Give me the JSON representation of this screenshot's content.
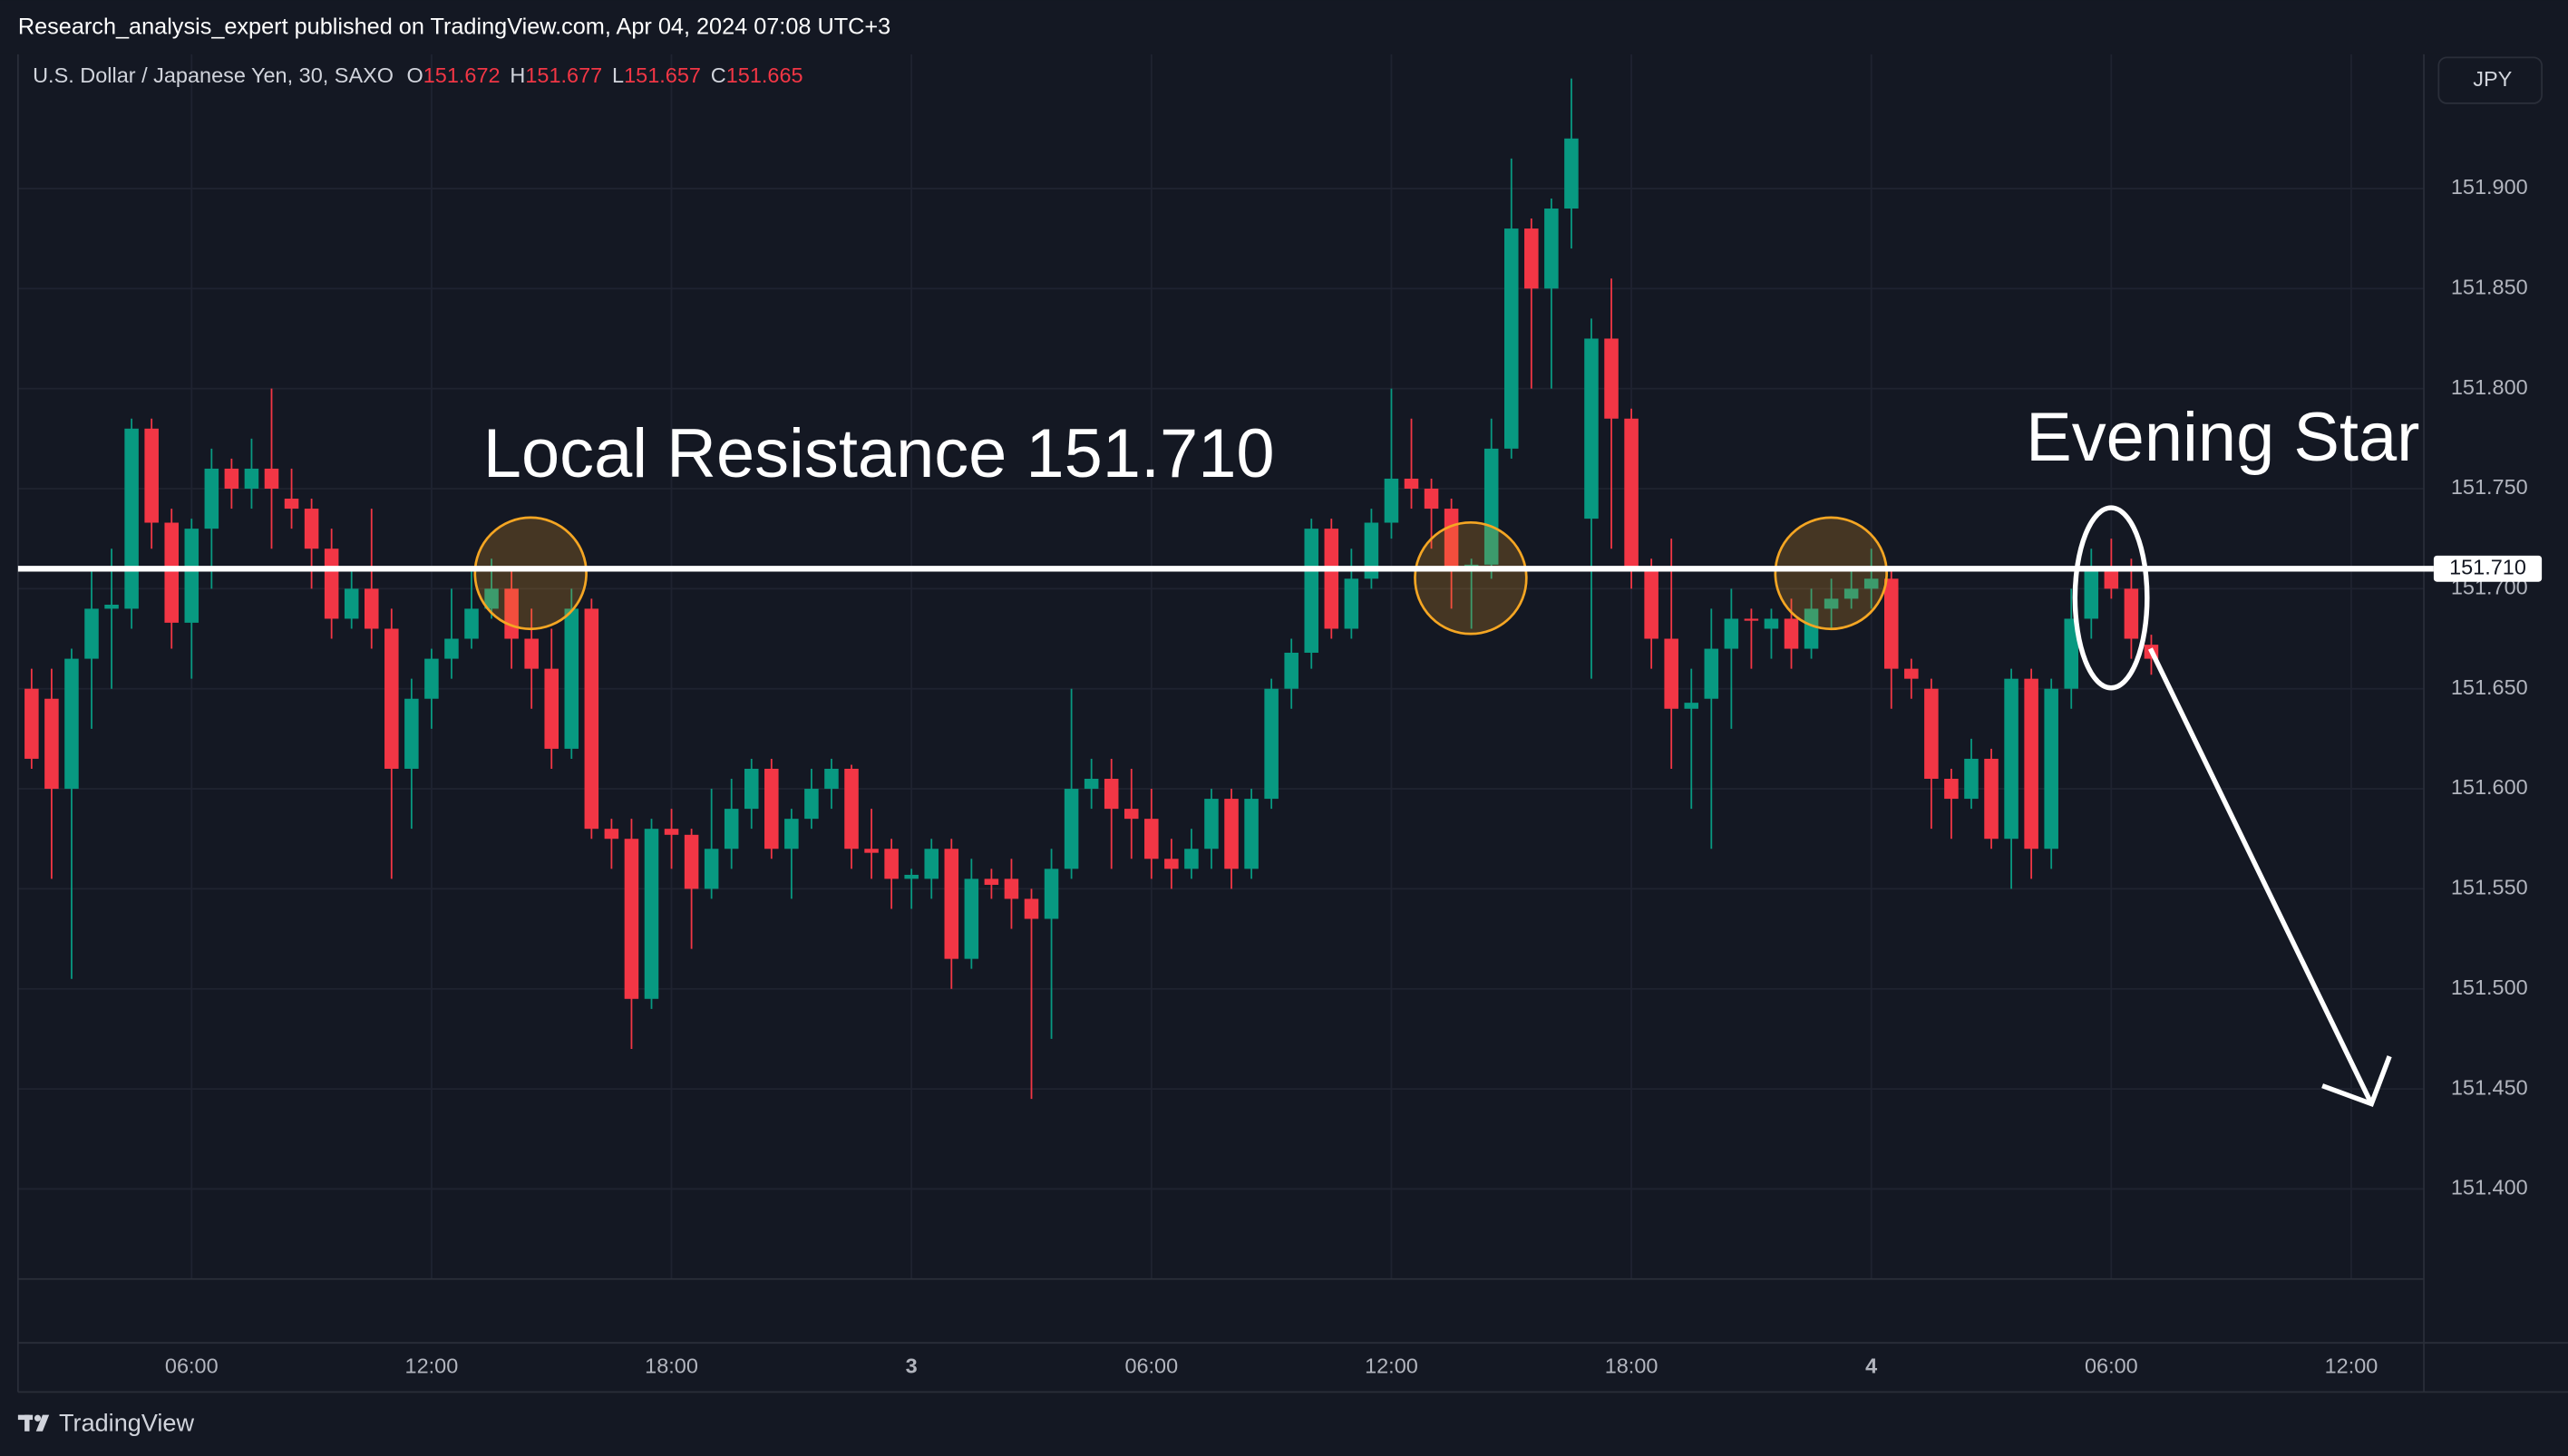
{
  "header": {
    "publisher": "Research_analysis_expert published on TradingView.com, Apr 04, 2024 07:08 UTC+3",
    "brand": "TradingView"
  },
  "chart_data": {
    "type": "candlestick",
    "symbol": "U.S. Dollar / Japanese Yen, 30, SAXO",
    "legend_labels": [
      "O",
      "H",
      "L",
      "C"
    ],
    "currency": "JPY",
    "annotations": [
      "Local Resistance 151.710",
      "Evening Star"
    ],
    "resistance": {
      "value": 151.71,
      "label": "151.710"
    },
    "up_color": "#089981",
    "down_color": "#f23645",
    "grid": true,
    "ylim": [
      151.355,
      151.97
    ],
    "yticks": [
      {
        "value": 151.4,
        "label": "151.400"
      },
      {
        "value": 151.45,
        "label": "151.450"
      },
      {
        "value": 151.5,
        "label": "151.500"
      },
      {
        "value": 151.55,
        "label": "151.550"
      },
      {
        "value": 151.6,
        "label": "151.600"
      },
      {
        "value": 151.65,
        "label": "151.650"
      },
      {
        "value": 151.7,
        "label": "151.700"
      },
      {
        "value": 151.75,
        "label": "151.750"
      },
      {
        "value": 151.8,
        "label": "151.800"
      },
      {
        "value": 151.85,
        "label": "151.850"
      },
      {
        "value": 151.9,
        "label": "151.900"
      }
    ],
    "categories": [
      null,
      null,
      null,
      null,
      null,
      null,
      null,
      null,
      "06:00",
      null,
      null,
      null,
      null,
      null,
      null,
      null,
      null,
      null,
      null,
      null,
      "12:00",
      null,
      null,
      null,
      null,
      null,
      null,
      null,
      null,
      null,
      null,
      null,
      "18:00",
      null,
      null,
      null,
      null,
      null,
      null,
      null,
      null,
      null,
      null,
      null,
      "3",
      null,
      null,
      null,
      null,
      null,
      null,
      null,
      null,
      null,
      null,
      null,
      "06:00",
      null,
      null,
      null,
      null,
      null,
      null,
      null,
      null,
      null,
      null,
      null,
      "12:00",
      null,
      null,
      null,
      null,
      null,
      null,
      null,
      null,
      null,
      null,
      null,
      "18:00",
      null,
      null,
      null,
      null,
      null,
      null,
      null,
      null,
      null,
      null,
      null,
      "4",
      null,
      null,
      null,
      null,
      null,
      null,
      null,
      null,
      null,
      null,
      null,
      "06:00",
      null,
      null,
      null,
      null,
      null,
      null,
      null,
      null,
      null,
      null,
      null,
      "12:00",
      null,
      null,
      null
    ],
    "open": [
      151.65,
      151.645,
      151.6,
      151.665,
      151.69,
      151.69,
      151.78,
      151.733,
      151.683,
      151.73,
      151.76,
      151.75,
      151.76,
      151.745,
      151.74,
      151.72,
      151.685,
      151.7,
      151.68,
      151.61,
      151.645,
      151.665,
      151.675,
      151.69,
      151.7,
      151.675,
      151.66,
      151.62,
      151.69,
      151.58,
      151.575,
      151.495,
      151.58,
      151.577,
      151.55,
      151.57,
      151.59,
      151.61,
      151.57,
      151.585,
      151.6,
      151.61,
      151.57,
      151.57,
      151.555,
      151.555,
      151.57,
      151.515,
      151.555,
      151.555,
      151.545,
      151.535,
      151.56,
      151.6,
      151.605,
      151.59,
      151.585,
      151.565,
      151.56,
      151.57,
      151.595,
      151.56,
      151.595,
      151.65,
      151.668,
      151.73,
      151.68,
      151.705,
      151.733,
      151.755,
      151.75,
      151.74,
      151.71,
      151.712,
      151.77,
      151.88,
      151.85,
      151.89,
      151.735,
      151.825,
      151.785,
      151.71,
      151.675,
      151.64,
      151.645,
      151.67,
      151.685,
      151.68,
      151.685,
      151.67,
      151.69,
      151.695,
      151.7,
      151.705,
      151.66,
      151.65,
      151.605,
      151.595,
      151.615,
      151.575,
      151.655,
      151.57,
      151.65,
      151.685,
      151.71,
      151.7,
      151.672,
      null,
      null,
      null,
      null,
      null,
      null,
      null,
      null,
      null,
      null,
      null,
      null,
      null
    ],
    "high": [
      151.66,
      151.66,
      151.67,
      151.71,
      151.72,
      151.785,
      151.785,
      151.74,
      151.735,
      151.77,
      151.765,
      151.775,
      151.8,
      151.76,
      151.745,
      151.73,
      151.71,
      151.74,
      151.69,
      151.655,
      151.67,
      151.7,
      151.71,
      151.715,
      151.71,
      151.69,
      151.68,
      151.7,
      151.695,
      151.585,
      151.585,
      151.585,
      151.59,
      151.58,
      151.6,
      151.605,
      151.615,
      151.615,
      151.59,
      151.61,
      151.615,
      151.612,
      151.59,
      151.575,
      151.56,
      151.575,
      151.575,
      151.565,
      151.56,
      151.565,
      151.55,
      151.57,
      151.65,
      151.615,
      151.615,
      151.61,
      151.6,
      151.575,
      151.58,
      151.6,
      151.6,
      151.6,
      151.655,
      151.675,
      151.735,
      151.735,
      151.72,
      151.74,
      151.8,
      151.785,
      151.755,
      151.745,
      151.715,
      151.785,
      151.915,
      151.885,
      151.895,
      151.955,
      151.835,
      151.855,
      151.79,
      151.715,
      151.725,
      151.66,
      151.69,
      151.7,
      151.69,
      151.69,
      151.695,
      151.7,
      151.705,
      151.71,
      151.72,
      151.71,
      151.665,
      151.655,
      151.61,
      151.625,
      151.62,
      151.66,
      151.66,
      151.655,
      151.7,
      151.72,
      151.725,
      151.715,
      151.677,
      null,
      null,
      null,
      null,
      null,
      null,
      null,
      null,
      null,
      null,
      null,
      null,
      null
    ],
    "low": [
      151.61,
      151.555,
      151.505,
      151.63,
      151.65,
      151.68,
      151.72,
      151.67,
      151.655,
      151.7,
      151.74,
      151.74,
      151.72,
      151.73,
      151.7,
      151.675,
      151.68,
      151.67,
      151.555,
      151.58,
      151.63,
      151.655,
      151.67,
      151.685,
      151.66,
      151.64,
      151.61,
      151.615,
      151.575,
      151.56,
      151.47,
      151.49,
      151.56,
      151.52,
      151.545,
      151.56,
      151.58,
      151.565,
      151.545,
      151.58,
      151.59,
      151.56,
      151.555,
      151.54,
      151.54,
      151.545,
      151.5,
      151.51,
      151.545,
      151.53,
      151.445,
      151.475,
      151.555,
      151.59,
      151.56,
      151.565,
      151.555,
      151.55,
      151.555,
      151.56,
      151.55,
      151.555,
      151.59,
      151.64,
      151.66,
      151.675,
      151.675,
      151.7,
      151.725,
      151.74,
      151.72,
      151.69,
      151.68,
      151.705,
      151.765,
      151.8,
      151.8,
      151.87,
      151.655,
      151.72,
      151.7,
      151.66,
      151.61,
      151.59,
      151.57,
      151.63,
      151.66,
      151.665,
      151.66,
      151.665,
      151.68,
      151.69,
      151.69,
      151.64,
      151.645,
      151.58,
      151.575,
      151.59,
      151.57,
      151.55,
      151.555,
      151.56,
      151.64,
      151.675,
      151.695,
      151.665,
      151.657,
      null,
      null,
      null,
      null,
      null,
      null,
      null,
      null,
      null,
      null,
      null,
      null,
      null
    ],
    "close": [
      151.615,
      151.6,
      151.665,
      151.69,
      151.692,
      151.78,
      151.733,
      151.683,
      151.73,
      151.76,
      151.75,
      151.76,
      151.75,
      151.74,
      151.72,
      151.685,
      151.7,
      151.68,
      151.61,
      151.645,
      151.665,
      151.675,
      151.69,
      151.7,
      151.675,
      151.66,
      151.62,
      151.69,
      151.58,
      151.575,
      151.495,
      151.58,
      151.577,
      151.55,
      151.57,
      151.59,
      151.61,
      151.57,
      151.585,
      151.6,
      151.61,
      151.57,
      151.568,
      151.555,
      151.557,
      151.57,
      151.515,
      151.555,
      151.552,
      151.545,
      151.535,
      151.56,
      151.6,
      151.605,
      151.59,
      151.585,
      151.565,
      151.56,
      151.57,
      151.595,
      151.56,
      151.595,
      151.65,
      151.668,
      151.73,
      151.68,
      151.705,
      151.733,
      151.755,
      151.75,
      151.74,
      151.71,
      151.712,
      151.77,
      151.88,
      151.85,
      151.89,
      151.925,
      151.825,
      151.785,
      151.71,
      151.675,
      151.64,
      151.643,
      151.67,
      151.685,
      151.684,
      151.685,
      151.67,
      151.69,
      151.695,
      151.7,
      151.705,
      151.66,
      151.655,
      151.605,
      151.595,
      151.615,
      151.575,
      151.655,
      151.57,
      151.65,
      151.685,
      151.71,
      151.7,
      151.675,
      151.665,
      null,
      null,
      null,
      null,
      null,
      null,
      null,
      null,
      null,
      null,
      null,
      null,
      null
    ]
  }
}
